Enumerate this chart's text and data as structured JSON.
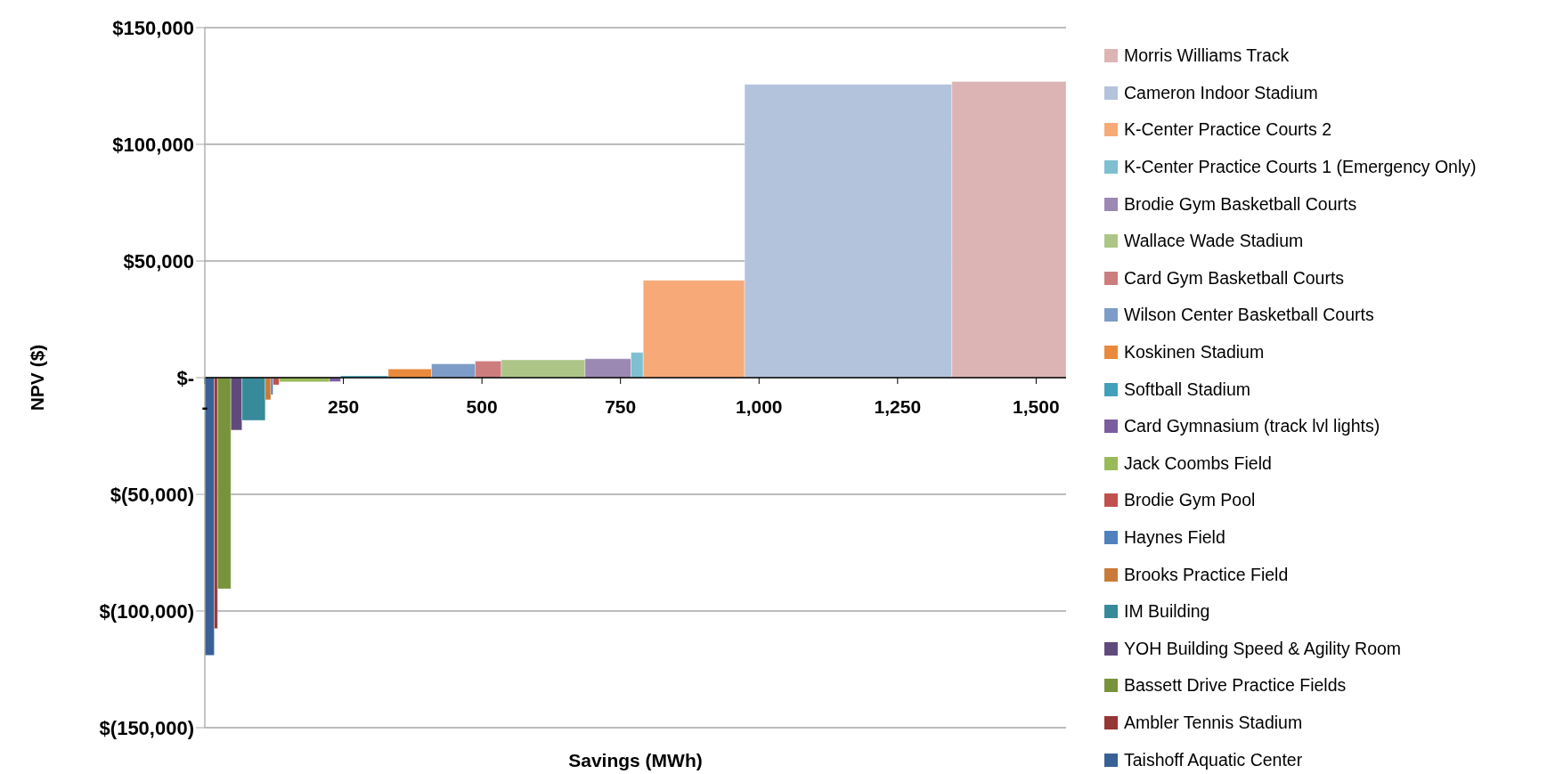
{
  "chart_data": {
    "type": "histogram",
    "xlabel": "Savings (MWh)",
    "ylabel": "NPV ($)",
    "xlim": [
      0,
      1554
    ],
    "xticks": [
      {
        "value": 0,
        "label": "-"
      },
      250,
      500,
      750,
      {
        "value": 1000,
        "label": "1,000"
      },
      {
        "value": 1250,
        "label": "1,250"
      },
      {
        "value": 1500,
        "label": "1,500"
      }
    ],
    "ylim": [
      -150000,
      150000
    ],
    "yticks": [
      {
        "value": -150000,
        "label": "$(150,000)"
      },
      {
        "value": -100000,
        "label": "$(100,000)"
      },
      {
        "value": -50000,
        "label": "$(50,000)"
      },
      {
        "value": 0,
        "label": "$-"
      },
      {
        "value": 50000,
        "label": "$50,000"
      },
      {
        "value": 100000,
        "label": "$100,000"
      },
      {
        "value": 150000,
        "label": "$150,000"
      }
    ],
    "grid": "y",
    "legend": "right",
    "bins": [
      0,
      17,
      23,
      47,
      67,
      109,
      119,
      123,
      134,
      225,
      245,
      331,
      409,
      488,
      535,
      686,
      769,
      791,
      974,
      1348,
      1554
    ],
    "series": [
      {
        "name": "Taishoff Aquatic Center",
        "color": "#3a6195",
        "values": [
          -119000,
          null,
          null,
          null,
          null,
          null,
          null,
          null,
          null,
          null,
          null,
          null,
          null,
          null,
          null,
          null,
          null,
          null,
          null,
          null
        ]
      },
      {
        "name": "Ambler Tennis Stadium",
        "color": "#953735",
        "values": [
          null,
          -107500,
          null,
          null,
          null,
          null,
          null,
          null,
          null,
          null,
          null,
          null,
          null,
          null,
          null,
          null,
          null,
          null,
          null,
          null
        ]
      },
      {
        "name": "Bassett Drive Practice Fields",
        "color": "#77933c",
        "values": [
          null,
          null,
          -90500,
          null,
          null,
          null,
          null,
          null,
          null,
          null,
          null,
          null,
          null,
          null,
          null,
          null,
          null,
          null,
          null,
          null
        ]
      },
      {
        "name": "YOH Building Speed & Agility Room",
        "color": "#604a7b",
        "values": [
          null,
          null,
          null,
          -22500,
          null,
          null,
          null,
          null,
          null,
          null,
          null,
          null,
          null,
          null,
          null,
          null,
          null,
          null,
          null,
          null
        ]
      },
      {
        "name": "IM Building",
        "color": "#378a9a",
        "values": [
          null,
          null,
          null,
          null,
          -18300,
          null,
          null,
          null,
          null,
          null,
          null,
          null,
          null,
          null,
          null,
          null,
          null,
          null,
          null,
          null
        ]
      },
      {
        "name": "Brooks Practice Field",
        "color": "#c97a3a",
        "values": [
          null,
          null,
          null,
          null,
          null,
          -9500,
          null,
          null,
          null,
          null,
          null,
          null,
          null,
          null,
          null,
          null,
          null,
          null,
          null,
          null
        ]
      },
      {
        "name": "Haynes Field",
        "color": "#4f81bd",
        "values": [
          null,
          null,
          null,
          null,
          null,
          null,
          -7300,
          null,
          null,
          null,
          null,
          null,
          null,
          null,
          null,
          null,
          null,
          null,
          null,
          null
        ]
      },
      {
        "name": "Brodie Gym Pool",
        "color": "#c0504d",
        "values": [
          null,
          null,
          null,
          null,
          null,
          null,
          null,
          -3100,
          null,
          null,
          null,
          null,
          null,
          null,
          null,
          null,
          null,
          null,
          null,
          null
        ]
      },
      {
        "name": "Jack Coombs Field",
        "color": "#98bb59",
        "values": [
          null,
          null,
          null,
          null,
          null,
          null,
          null,
          null,
          -1800,
          null,
          null,
          null,
          null,
          null,
          null,
          null,
          null,
          null,
          null,
          null
        ]
      },
      {
        "name": "Card Gymnasium (track lvl lights)",
        "color": "#7b5ea0",
        "values": [
          null,
          null,
          null,
          null,
          null,
          null,
          null,
          null,
          null,
          -1700,
          null,
          null,
          null,
          null,
          null,
          null,
          null,
          null,
          null,
          null
        ]
      },
      {
        "name": "Softball Stadium",
        "color": "#42a0ba",
        "values": [
          null,
          null,
          null,
          null,
          null,
          null,
          null,
          null,
          null,
          null,
          800,
          null,
          null,
          null,
          null,
          null,
          null,
          null,
          null,
          null
        ]
      },
      {
        "name": "Koskinen Stadium",
        "color": "#e8893e",
        "values": [
          null,
          null,
          null,
          null,
          null,
          null,
          null,
          null,
          null,
          null,
          null,
          3700,
          null,
          null,
          null,
          null,
          null,
          null,
          null,
          null
        ]
      },
      {
        "name": "Wilson Center Basketball Courts",
        "color": "#7e9cc8",
        "values": [
          null,
          null,
          null,
          null,
          null,
          null,
          null,
          null,
          null,
          null,
          null,
          null,
          5900,
          null,
          null,
          null,
          null,
          null,
          null,
          null
        ]
      },
      {
        "name": "Card Gym Basketball Courts",
        "color": "#cd7d7d",
        "values": [
          null,
          null,
          null,
          null,
          null,
          null,
          null,
          null,
          null,
          null,
          null,
          null,
          null,
          7100,
          null,
          null,
          null,
          null,
          null,
          null
        ]
      },
      {
        "name": "Wallace Wade Stadium",
        "color": "#adc687",
        "values": [
          null,
          null,
          null,
          null,
          null,
          null,
          null,
          null,
          null,
          null,
          null,
          null,
          null,
          null,
          7600,
          null,
          null,
          null,
          null,
          null
        ]
      },
      {
        "name": "Brodie Gym Basketball Courts",
        "color": "#9b88b3",
        "values": [
          null,
          null,
          null,
          null,
          null,
          null,
          null,
          null,
          null,
          null,
          null,
          null,
          null,
          null,
          null,
          8100,
          null,
          null,
          null,
          null
        ]
      },
      {
        "name": "K-Center Practice Courts 1 (Emergency Only)",
        "color": "#7fbfd0",
        "values": [
          null,
          null,
          null,
          null,
          null,
          null,
          null,
          null,
          null,
          null,
          null,
          null,
          null,
          null,
          null,
          null,
          10800,
          null,
          null,
          null
        ]
      },
      {
        "name": "K-Center Practice Courts 2",
        "color": "#f7aa78",
        "values": [
          null,
          null,
          null,
          null,
          null,
          null,
          null,
          null,
          null,
          null,
          null,
          null,
          null,
          null,
          null,
          null,
          null,
          41700,
          null,
          null
        ]
      },
      {
        "name": "Cameron Indoor Stadium",
        "color": "#b4c3dc",
        "values": [
          null,
          null,
          null,
          null,
          null,
          null,
          null,
          null,
          null,
          null,
          null,
          null,
          null,
          null,
          null,
          null,
          null,
          null,
          125700,
          null
        ]
      },
      {
        "name": "Morris Williams Track",
        "color": "#dcb4b4",
        "values": [
          null,
          null,
          null,
          null,
          null,
          null,
          null,
          null,
          null,
          null,
          null,
          null,
          null,
          null,
          null,
          null,
          null,
          null,
          null,
          126900
        ]
      }
    ]
  }
}
